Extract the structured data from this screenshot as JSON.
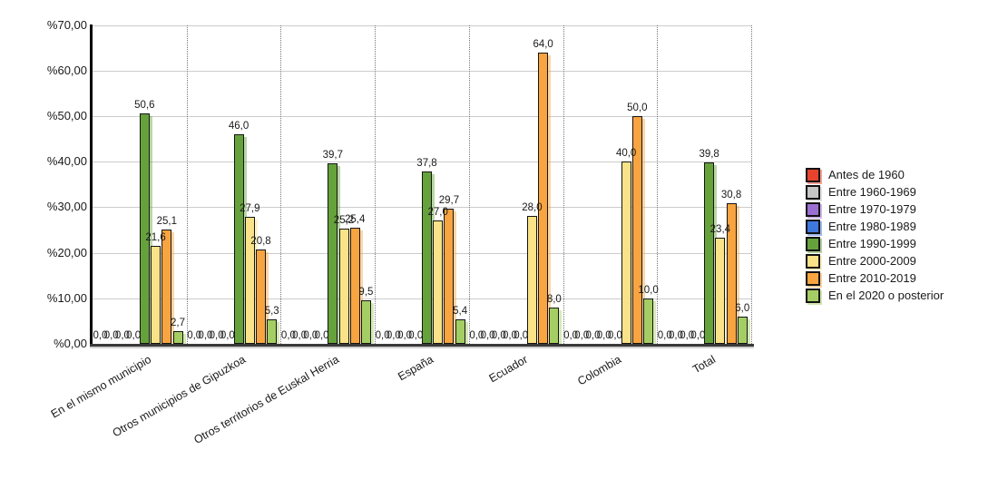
{
  "chart_data": {
    "type": "bar",
    "title": "",
    "categories": [
      "En el mismo municipio",
      "Otros municipios de Gipuzkoa",
      "Otros territorios de Euskal Herria",
      "España",
      "Ecuador",
      "Colombia",
      "Total"
    ],
    "series": [
      {
        "name": "Antes de 1960",
        "color": "#e7432e",
        "values": [
          0,
          0,
          0,
          0,
          0,
          0,
          0
        ]
      },
      {
        "name": "Entre 1960-1969",
        "color": "#c6c6c6",
        "values": [
          0,
          0,
          0,
          0,
          0,
          0,
          0
        ]
      },
      {
        "name": "Entre 1970-1979",
        "color": "#9b6fd2",
        "values": [
          0,
          0,
          0,
          0,
          0,
          0,
          0
        ]
      },
      {
        "name": "Entre 1980-1989",
        "color": "#3f78dc",
        "values": [
          0,
          0,
          0,
          0,
          0,
          0,
          0
        ]
      },
      {
        "name": "Entre 1990-1999",
        "color": "#66a23c",
        "values": [
          50.6,
          46.0,
          39.7,
          37.8,
          0,
          0,
          39.8
        ]
      },
      {
        "name": "Entre 2000-2009",
        "color": "#f9e287",
        "values": [
          21.6,
          27.9,
          25.2,
          27.0,
          28.0,
          40.0,
          23.4
        ]
      },
      {
        "name": "Entre 2010-2019",
        "color": "#f8a440",
        "values": [
          25.1,
          20.8,
          25.4,
          29.7,
          64.0,
          50.0,
          30.8
        ]
      },
      {
        "name": "En el 2020 o posterior",
        "color": "#a4ce64",
        "values": [
          2.7,
          5.3,
          9.5,
          5.4,
          8.0,
          10.0,
          6.0
        ]
      }
    ],
    "y_axis": {
      "min": 0,
      "max": 70,
      "step": 10,
      "tick_labels": [
        "%0,00",
        "%10,00",
        "%20,00",
        "%30,00",
        "%40,00",
        "%50,00",
        "%60,00",
        "%70,00"
      ]
    },
    "value_labels": {
      "format": "one decimal, comma separator",
      "zero_label": "0,0"
    },
    "legend_position": "right",
    "grid": {
      "horizontal": "solid light gray",
      "vertical": "dotted category separators"
    }
  }
}
